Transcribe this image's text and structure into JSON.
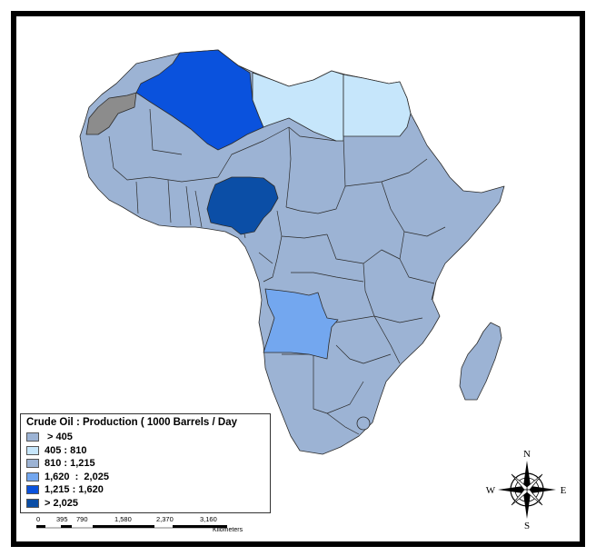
{
  "legend": {
    "title": "Crude Oil : Production ( 1000 Barrels / Day",
    "classes": [
      {
        "label": " > 405",
        "color": "#9cb3d4"
      },
      {
        "label": "405 : 810",
        "color": "#c6e6fb"
      },
      {
        "label": "810 : 1,215",
        "color": "#9cb3d4"
      },
      {
        "label": "1,620  :  2,025",
        "color": "#73a7ef"
      },
      {
        "label": "1,215 : 1,620",
        "color": "#0a52dd"
      },
      {
        "label": "> 2,025",
        "color": "#0b4ea6"
      }
    ]
  },
  "countries": {
    "base": "#9cb3d4",
    "algeria": "#0a52dd",
    "libya": "#c6e6fb",
    "egypt": "#c6e6fb",
    "nigeria": "#0b4ea6",
    "angola": "#73a7ef",
    "western_sahara": "#8c8c8c"
  },
  "compass": {
    "n": "N",
    "s": "S",
    "e": "E",
    "w": "W"
  },
  "scale": {
    "ticks": [
      "0",
      "395",
      "790",
      "1,580",
      "2,370",
      "3,160"
    ],
    "unit": "Kilometers"
  }
}
